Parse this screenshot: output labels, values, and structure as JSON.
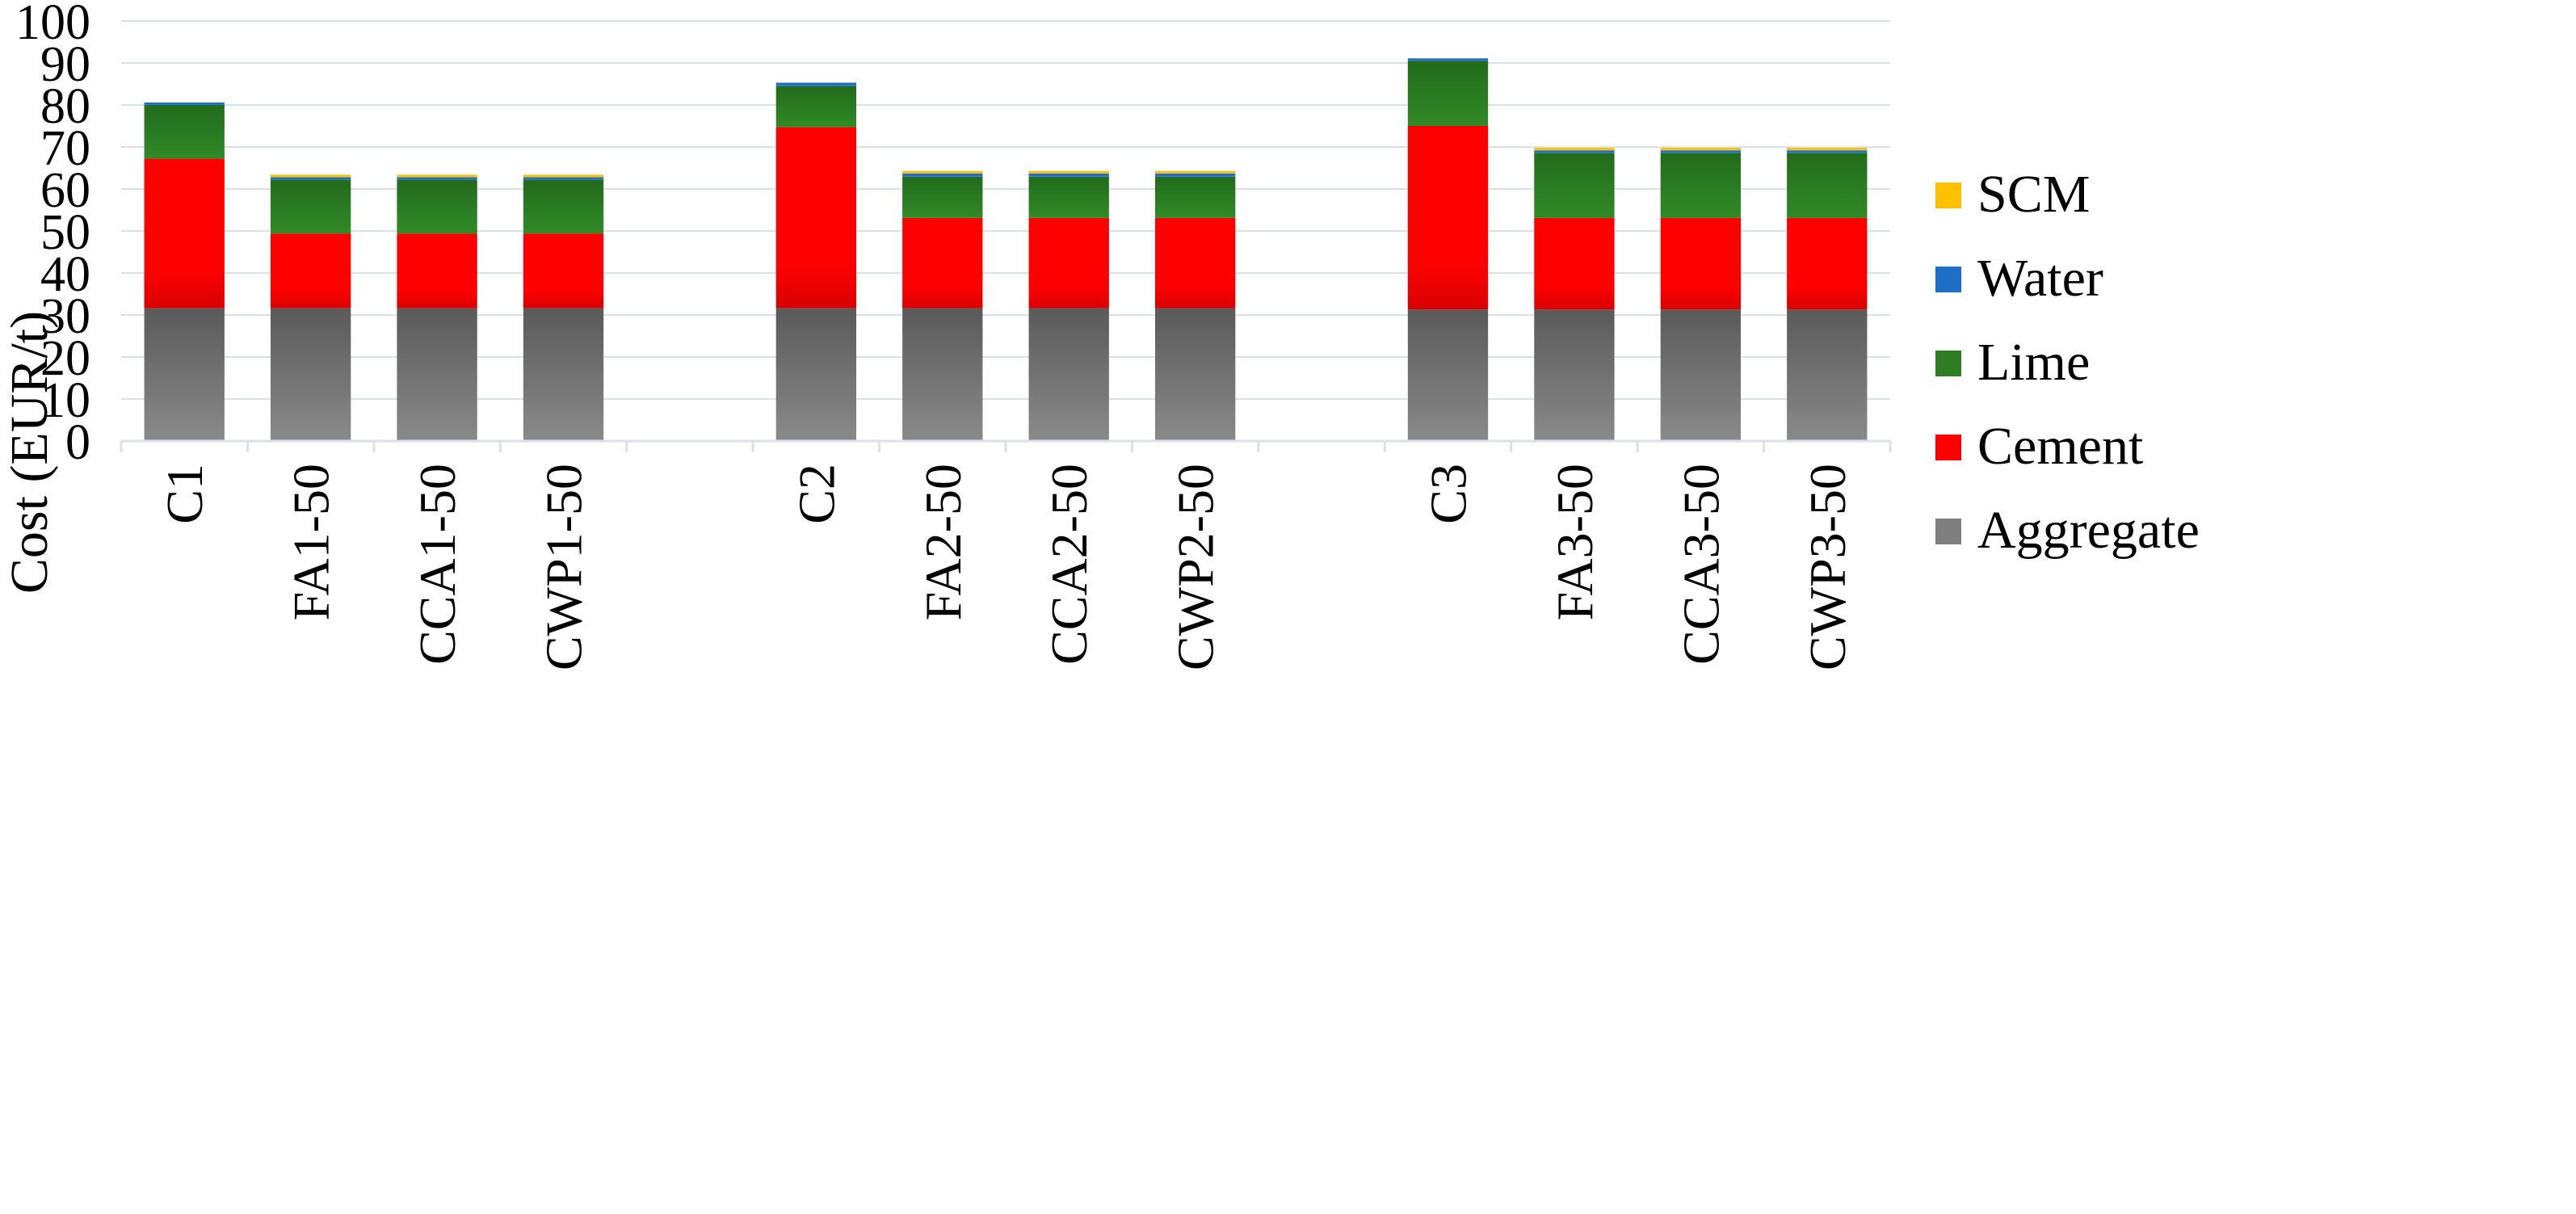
{
  "chart_data": {
    "type": "bar",
    "stacked": true,
    "title": "",
    "xlabel": "",
    "ylabel": "Cost (EUR/t)",
    "ylim": [
      0,
      100
    ],
    "yticks": [
      "0",
      "10",
      "20",
      "30",
      "40",
      "50",
      "60",
      "70",
      "80",
      "90",
      "100"
    ],
    "grid": true,
    "legend_position": "right",
    "categories": [
      "C1",
      "FA1-50",
      "CCA1-50",
      "CWP1-50",
      "",
      "C2",
      "FA2-50",
      "CCA2-50",
      "CWP2-50",
      "",
      "C3",
      "FA3-50",
      "CCA3-50",
      "CWP3-50"
    ],
    "series": [
      {
        "name": "Aggregate",
        "color": "#7f7f7f",
        "values": [
          31.6,
          31.6,
          31.6,
          31.6,
          null,
          31.6,
          31.6,
          31.6,
          31.6,
          null,
          31.3,
          31.3,
          31.3,
          31.3
        ]
      },
      {
        "name": "Cement",
        "color": "#ff0000",
        "values": [
          35.6,
          17.8,
          17.8,
          17.8,
          null,
          43.1,
          21.5,
          21.5,
          21.5,
          null,
          43.7,
          21.8,
          21.8,
          21.8
        ]
      },
      {
        "name": "Lime",
        "color": "#2e7d23",
        "values": [
          12.8,
          12.8,
          12.8,
          12.8,
          null,
          9.8,
          9.8,
          9.8,
          9.8,
          null,
          15.5,
          15.5,
          15.5,
          15.5
        ]
      },
      {
        "name": "Water",
        "color": "#1f6fc6",
        "values": [
          0.6,
          0.6,
          0.6,
          0.6,
          null,
          0.8,
          0.8,
          0.8,
          0.8,
          null,
          0.6,
          0.6,
          0.6,
          0.6
        ]
      },
      {
        "name": "SCM",
        "color": "#ffc000",
        "values": [
          0,
          0.6,
          0.6,
          0.6,
          null,
          0,
          0.6,
          0.6,
          0.6,
          null,
          0,
          0.6,
          0.6,
          0.6
        ]
      }
    ],
    "legend_order": [
      "SCM",
      "Water",
      "Lime",
      "Cement",
      "Aggregate"
    ]
  }
}
